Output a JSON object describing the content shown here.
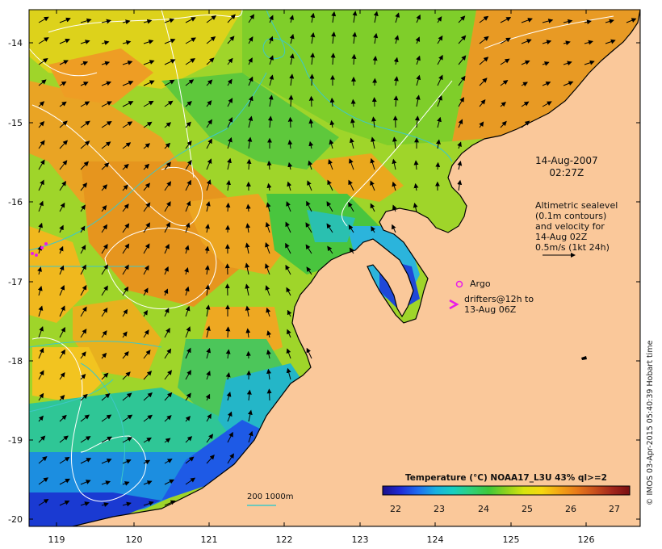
{
  "date_label": {
    "date": "14-Aug-2007",
    "time": "02:27Z"
  },
  "altimetry_note": [
    "Altimetric sealevel",
    "(0.1m contours)",
    "and velocity for",
    "14-Aug 02Z",
    "0.5m/s (1kt 24h)"
  ],
  "argo_label": "Argo",
  "drifters_label": [
    "drifters@12h to",
    "13-Aug 06Z"
  ],
  "bathy_label": "200  1000m",
  "colorbar": {
    "title": "Temperature (°C) NOAA17_L3U 43% ql>=2",
    "ticks": [
      "22",
      "23",
      "24",
      "25",
      "26",
      "27"
    ],
    "colors": [
      "#1a0f8a",
      "#1f2bd6",
      "#1e6cf0",
      "#18b0e0",
      "#17cfc0",
      "#2fd07a",
      "#3ec83a",
      "#8ed21e",
      "#d7e40e",
      "#f5d80e",
      "#f3a614",
      "#e87a1a",
      "#c9501c",
      "#a3271c",
      "#7a0f12"
    ]
  },
  "axes": {
    "lon_ticks": [
      "119",
      "120",
      "121",
      "122",
      "123",
      "124",
      "125",
      "126"
    ],
    "lat_ticks": [
      "-14",
      "-15",
      "-16",
      "-17",
      "-18",
      "-19",
      "-20"
    ]
  },
  "credit": "© IMOS 03-Apr-2015 05:40:39 Hobart time",
  "colors": {
    "land": "#fac89a",
    "contour": "#ffffff",
    "bathy": "#3ec8c8",
    "argo": "#e81ce8"
  }
}
